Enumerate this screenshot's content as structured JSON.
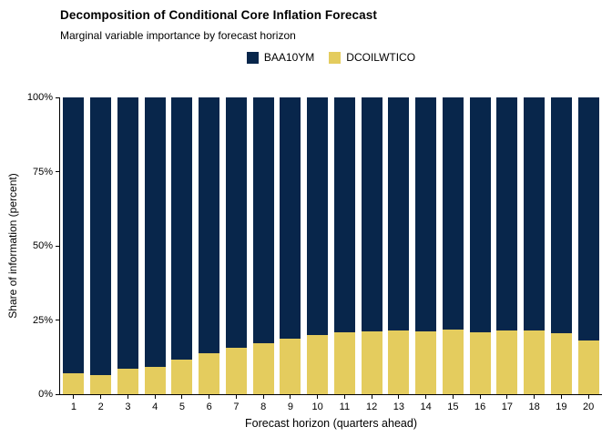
{
  "header": {
    "title": "Decomposition of Conditional Core Inflation Forecast",
    "subtitle": "Marginal variable importance by forecast horizon"
  },
  "chart_data": {
    "type": "bar",
    "stacked": true,
    "categories": [
      "1",
      "2",
      "3",
      "4",
      "5",
      "6",
      "7",
      "8",
      "9",
      "10",
      "11",
      "12",
      "13",
      "14",
      "15",
      "16",
      "17",
      "18",
      "19",
      "20"
    ],
    "series": [
      {
        "name": "BAA10YM",
        "color": "#08264b",
        "values": [
          93.0,
          93.5,
          91.4,
          90.7,
          88.4,
          86.1,
          84.5,
          82.7,
          81.2,
          80.2,
          79.2,
          78.9,
          78.5,
          78.7,
          78.1,
          79.0,
          78.6,
          78.4,
          79.4,
          81.8
        ]
      },
      {
        "name": "DCOILWTICO",
        "color": "#e4cc5e",
        "values": [
          7.0,
          6.5,
          8.6,
          9.3,
          11.6,
          13.9,
          15.5,
          17.3,
          18.8,
          19.8,
          20.8,
          21.1,
          21.5,
          21.3,
          21.9,
          21.0,
          21.4,
          21.6,
          20.6,
          18.2
        ]
      }
    ],
    "title": "Decomposition of Conditional Core Inflation Forecast",
    "subtitle": "Marginal variable importance by forecast horizon",
    "xlabel": "Forecast horizon (quarters ahead)",
    "ylabel": "Share of information (percent)",
    "ylim": [
      0,
      100
    ],
    "yticks": [
      {
        "value": 0,
        "label": "0%"
      },
      {
        "value": 25,
        "label": "25%"
      },
      {
        "value": 50,
        "label": "50%"
      },
      {
        "value": 75,
        "label": "75%"
      },
      {
        "value": 100,
        "label": "100%"
      }
    ],
    "legend_position": "top-center",
    "grid": false,
    "background": "#ffffff",
    "axis_color": "#000000",
    "text_color": "#000000"
  }
}
